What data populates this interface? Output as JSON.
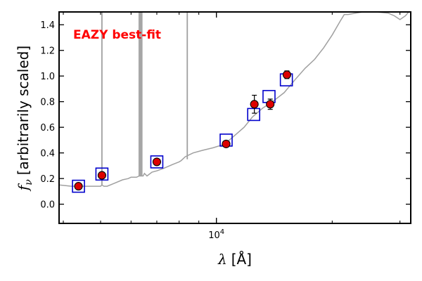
{
  "chart_data": {
    "type": "scatter",
    "title": "",
    "annotation": "EAZY best-fit",
    "annotation_color": "#ff0000",
    "xlabel_symbol": "λ",
    "xlabel_unit": "[Å]",
    "ylabel_symbol": "f",
    "ylabel_subscript": "ν",
    "ylabel_text": "[arbitrarily scaled]",
    "x_scale": "log",
    "xlim": [
      3900,
      32000
    ],
    "ylim": [
      -0.15,
      1.5
    ],
    "x_tick_label": {
      "base": "10",
      "exponent": "4",
      "value": 10000
    },
    "y_ticks": [
      0.0,
      0.2,
      0.4,
      0.6,
      0.8,
      1.0,
      1.2,
      1.4
    ],
    "y_tick_labels": [
      "0.0",
      "0.2",
      "0.4",
      "0.6",
      "0.8",
      "1.0",
      "1.2",
      "1.4"
    ],
    "grid": false,
    "series": [
      {
        "role": "template",
        "color": "#a0a0a0",
        "style": "line",
        "x": [
          3900,
          4200,
          4600,
          5000,
          5040,
          5100,
          5200,
          5400,
          5700,
          5900,
          6000,
          6200,
          6300,
          6400,
          6450,
          6500,
          6600,
          6800,
          7000,
          7300,
          7700,
          8000,
          8100,
          8300,
          8700,
          9200,
          9800,
          10300,
          10800,
          11200,
          11800,
          12400,
          13200,
          14000,
          15000,
          16000,
          17000,
          18000,
          19000,
          20000,
          21000,
          21500,
          22000,
          24000,
          26000,
          28000,
          29000,
          30000,
          31000,
          32000
        ],
        "y": [
          0.15,
          0.14,
          0.14,
          0.14,
          0.15,
          0.14,
          0.14,
          0.16,
          0.19,
          0.2,
          0.21,
          0.21,
          0.22,
          0.22,
          0.22,
          0.24,
          0.22,
          0.25,
          0.26,
          0.28,
          0.31,
          0.33,
          0.34,
          0.37,
          0.4,
          0.42,
          0.44,
          0.46,
          0.5,
          0.54,
          0.6,
          0.68,
          0.75,
          0.8,
          0.87,
          0.97,
          1.06,
          1.13,
          1.22,
          1.32,
          1.43,
          1.48,
          1.48,
          1.5,
          1.5,
          1.49,
          1.47,
          1.44,
          1.47,
          1.52
        ]
      },
      {
        "role": "emission-lines",
        "color": "#a0a0a0",
        "style": "spike",
        "x": [
          5040,
          6300,
          6350,
          6400,
          8400
        ],
        "y_base": [
          0.15,
          0.22,
          0.22,
          0.22,
          0.35
        ]
      },
      {
        "role": "model-photometry",
        "color": "#0000cc",
        "marker": "open-square",
        "x": [
          4380,
          5040,
          7000,
          10600,
          12500,
          13700,
          15200
        ],
        "y": [
          0.14,
          0.235,
          0.33,
          0.5,
          0.7,
          0.84,
          0.97
        ]
      },
      {
        "role": "observed-photometry",
        "color": "#dd0000",
        "marker": "filled-circle",
        "x": [
          4380,
          5040,
          7000,
          10600,
          12550,
          13800,
          15250
        ],
        "y": [
          0.14,
          0.225,
          0.33,
          0.47,
          0.78,
          0.78,
          1.01
        ],
        "yerr": [
          0.0,
          0.0,
          0.0,
          0.0,
          0.07,
          0.04,
          0.03
        ]
      }
    ]
  }
}
